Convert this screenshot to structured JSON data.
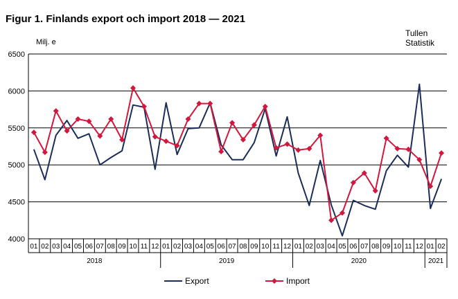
{
  "chart_data": {
    "type": "line",
    "title": "Figur 1. Finlands export och import 2018 — 2021",
    "ylabel": "Milj. e",
    "source_lines": [
      "Tullen",
      "Statistik"
    ],
    "ylim": [
      4000,
      6500
    ],
    "yticks": [
      4000,
      4500,
      5000,
      5500,
      6000,
      6500
    ],
    "grid": true,
    "legend_position": "bottom",
    "month_labels": [
      "01",
      "02",
      "03",
      "04",
      "05",
      "06",
      "07",
      "08",
      "09",
      "10",
      "11",
      "12",
      "01",
      "02",
      "03",
      "04",
      "05",
      "06",
      "07",
      "08",
      "09",
      "10",
      "11",
      "12",
      "01",
      "02",
      "03",
      "04",
      "05",
      "06",
      "07",
      "08",
      "09",
      "10",
      "11",
      "12",
      "01",
      "02"
    ],
    "years": [
      {
        "label": "2018",
        "months": 12
      },
      {
        "label": "2019",
        "months": 12
      },
      {
        "label": "2020",
        "months": 12
      },
      {
        "label": "2021",
        "months": 2
      }
    ],
    "series": [
      {
        "name": "Export",
        "color": "#1a2d5a",
        "marker": "none",
        "values": [
          5210,
          4800,
          5400,
          5600,
          5360,
          5420,
          5000,
          5100,
          5190,
          5810,
          5780,
          4940,
          5840,
          5140,
          5490,
          5500,
          5840,
          5270,
          5070,
          5070,
          5300,
          5760,
          5120,
          5650,
          4890,
          4450,
          5060,
          4460,
          4040,
          4520,
          4450,
          4400,
          4920,
          5130,
          4970,
          6090,
          4410,
          4810
        ]
      },
      {
        "name": "Import",
        "color": "#d5163c",
        "marker": "diamond",
        "values": [
          5440,
          5170,
          5730,
          5460,
          5620,
          5590,
          5390,
          5620,
          5340,
          6040,
          5790,
          5380,
          5320,
          5260,
          5620,
          5830,
          5830,
          5180,
          5570,
          5340,
          5540,
          5790,
          5230,
          5280,
          5200,
          5220,
          5400,
          4250,
          4350,
          4760,
          4890,
          4650,
          5360,
          5220,
          5210,
          5070,
          4710,
          5160
        ]
      }
    ]
  }
}
